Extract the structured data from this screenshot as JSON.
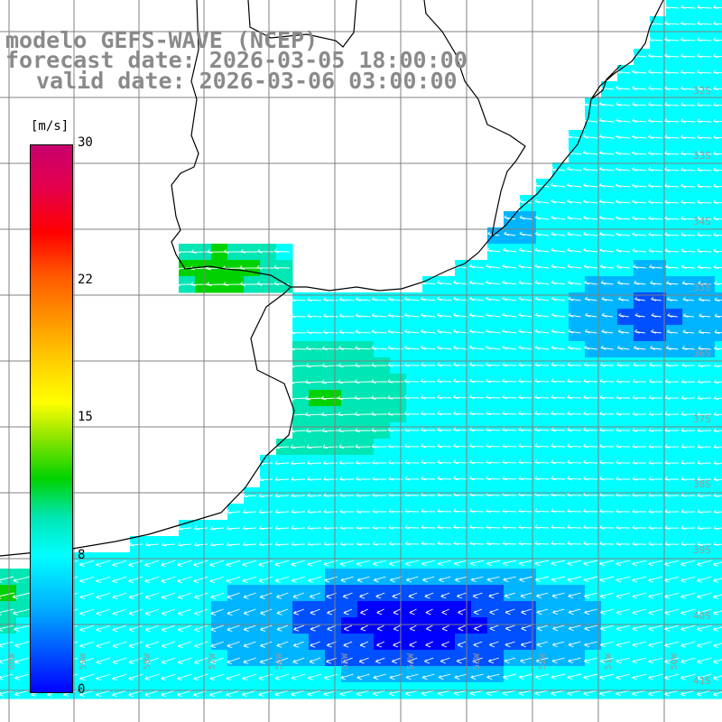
{
  "title": {
    "line1": "modelo GEFS-WAVE (NCEP)",
    "line2": "forecast date: 2026-03-05 18:00:00",
    "line3": "valid date: 2026-03-06 03:00:00"
  },
  "colorbar": {
    "unit": "[m/s]",
    "ticks": [
      "30",
      "22",
      "15",
      "8",
      "0"
    ],
    "range": [
      0,
      30
    ],
    "colors": [
      "#0000ff",
      "#0050ff",
      "#00b4ff",
      "#00ffff",
      "#00e6b4",
      "#00d200",
      "#96e600",
      "#ffff00",
      "#ffd200",
      "#ff9600",
      "#ff5a00",
      "#ff0000",
      "#e5004a",
      "#c8006e"
    ]
  },
  "grid": {
    "lat_labels": [
      "32S",
      "33S",
      "34S",
      "35S",
      "36S",
      "37S",
      "38S",
      "39S",
      "40S",
      "41S"
    ],
    "lon_labels": [
      "60W",
      "59W",
      "58W",
      "57W",
      "56W",
      "55W",
      "54W",
      "53W",
      "52W",
      "51W",
      "50W"
    ]
  },
  "legend_colors": {
    "land": "#ffffff",
    "coast": "#000000",
    "grid": "#808080",
    "arrows": "#ffffff"
  }
}
